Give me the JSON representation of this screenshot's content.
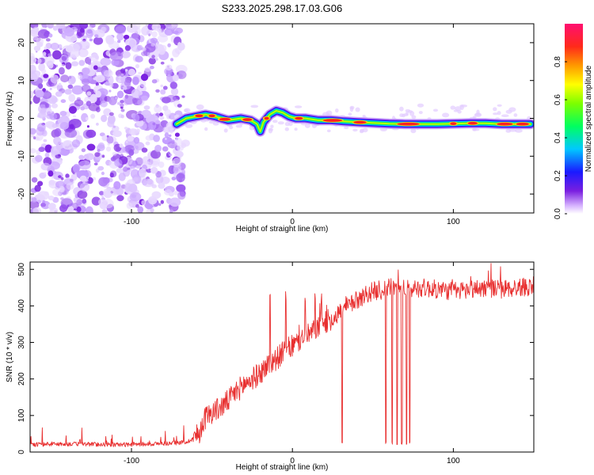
{
  "title": "S233.2025.298.17.03.G06",
  "chart_data": [
    {
      "type": "heatmap",
      "name": "spectrogram",
      "xlabel": "Height of straight line (km)",
      "ylabel": "Frequency (Hz)",
      "xlim": [
        -163,
        150
      ],
      "ylim": [
        -25,
        25
      ],
      "xticks": [
        -100,
        0,
        100
      ],
      "yticks": [
        -20,
        -10,
        0,
        10,
        20
      ],
      "noise_region_x": [
        -163,
        -68
      ],
      "colorbar": {
        "label": "Normalized spectral amplitude",
        "range": [
          0,
          1
        ],
        "ticks": [
          "0.0",
          "0.2",
          "0.4",
          "0.6",
          "0.8"
        ],
        "tick_values": [
          0.0,
          0.2,
          0.4,
          0.6,
          0.8
        ]
      },
      "signal_track": {
        "x": [
          -72,
          -66,
          -60,
          -54,
          -48,
          -40,
          -32,
          -26,
          -22,
          -20,
          -18,
          -14,
          -10,
          -6,
          -2,
          2,
          8,
          16,
          24,
          32,
          40,
          50,
          60,
          70,
          80,
          90,
          100,
          110,
          120,
          130,
          140,
          148
        ],
        "freq": [
          -1.5,
          0,
          0.5,
          1,
          0.5,
          -0.5,
          0,
          -0.5,
          -1.5,
          -3.5,
          -1,
          1,
          2,
          1.5,
          0.5,
          0,
          0,
          -0.5,
          -0.5,
          -0.8,
          -1,
          -1.2,
          -1.4,
          -1.5,
          -1.5,
          -1.5,
          -1.4,
          -1.3,
          -1.3,
          -1.5,
          -1.5,
          -1.5
        ]
      }
    },
    {
      "type": "line",
      "name": "snr",
      "xlabel": "Height of straight line (km)",
      "ylabel": "SNR (10 * v/v)",
      "xlim": [
        -163,
        150
      ],
      "ylim": [
        0,
        520
      ],
      "xticks": [
        -100,
        0,
        100
      ],
      "yticks": [
        0,
        100,
        200,
        300,
        400,
        500
      ],
      "color": "#e83030",
      "series": [
        {
          "name": "SNR",
          "x": [
            -163,
            -150,
            -130,
            -110,
            -90,
            -75,
            -65,
            -58,
            -55,
            -50,
            -45,
            -40,
            -35,
            -30,
            -25,
            -20,
            -15,
            -10,
            -5,
            0,
            5,
            10,
            15,
            20,
            25,
            30,
            35,
            40,
            45,
            50,
            55,
            60,
            70,
            80,
            90,
            100,
            110,
            120,
            130,
            140,
            150
          ],
          "y": [
            20,
            22,
            22,
            20,
            22,
            24,
            28,
            50,
            90,
            110,
            120,
            140,
            165,
            185,
            200,
            215,
            240,
            255,
            275,
            290,
            305,
            320,
            340,
            355,
            365,
            385,
            400,
            415,
            430,
            440,
            445,
            450,
            445,
            450,
            445,
            440,
            445,
            450,
            445,
            450,
            455
          ]
        }
      ],
      "spikes_up_x": [
        -14,
        -4,
        8,
        14,
        18,
        42,
        50,
        55
      ],
      "spikes_down_x": [
        31,
        58,
        62,
        65,
        68,
        71,
        73
      ]
    }
  ]
}
